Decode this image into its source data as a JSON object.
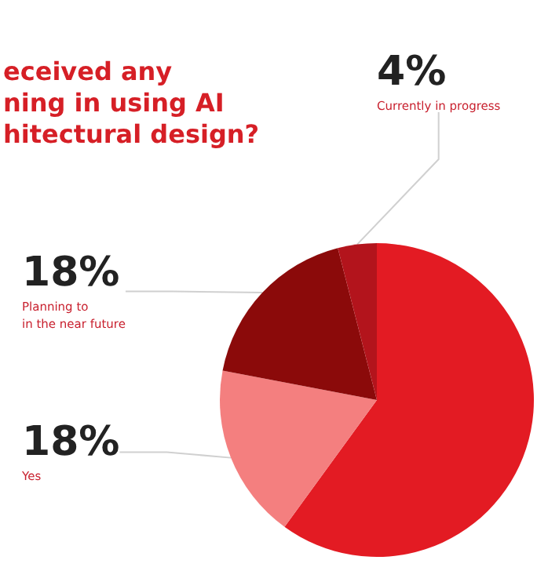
{
  "chart_data": {
    "type": "pie",
    "title": "eceived any\nning in using AI\nhitectural design?",
    "categories": [
      null,
      "Yes",
      "Planning to\nin the near future",
      "Currently in progress"
    ],
    "values": [
      60,
      18,
      18,
      4
    ],
    "colors": [
      "#e31b23",
      "#f47f7f",
      "#8b0a0a",
      "#b3141c"
    ],
    "value_labels": [
      null,
      "18%",
      "18%",
      "4%"
    ],
    "legend": false
  }
}
